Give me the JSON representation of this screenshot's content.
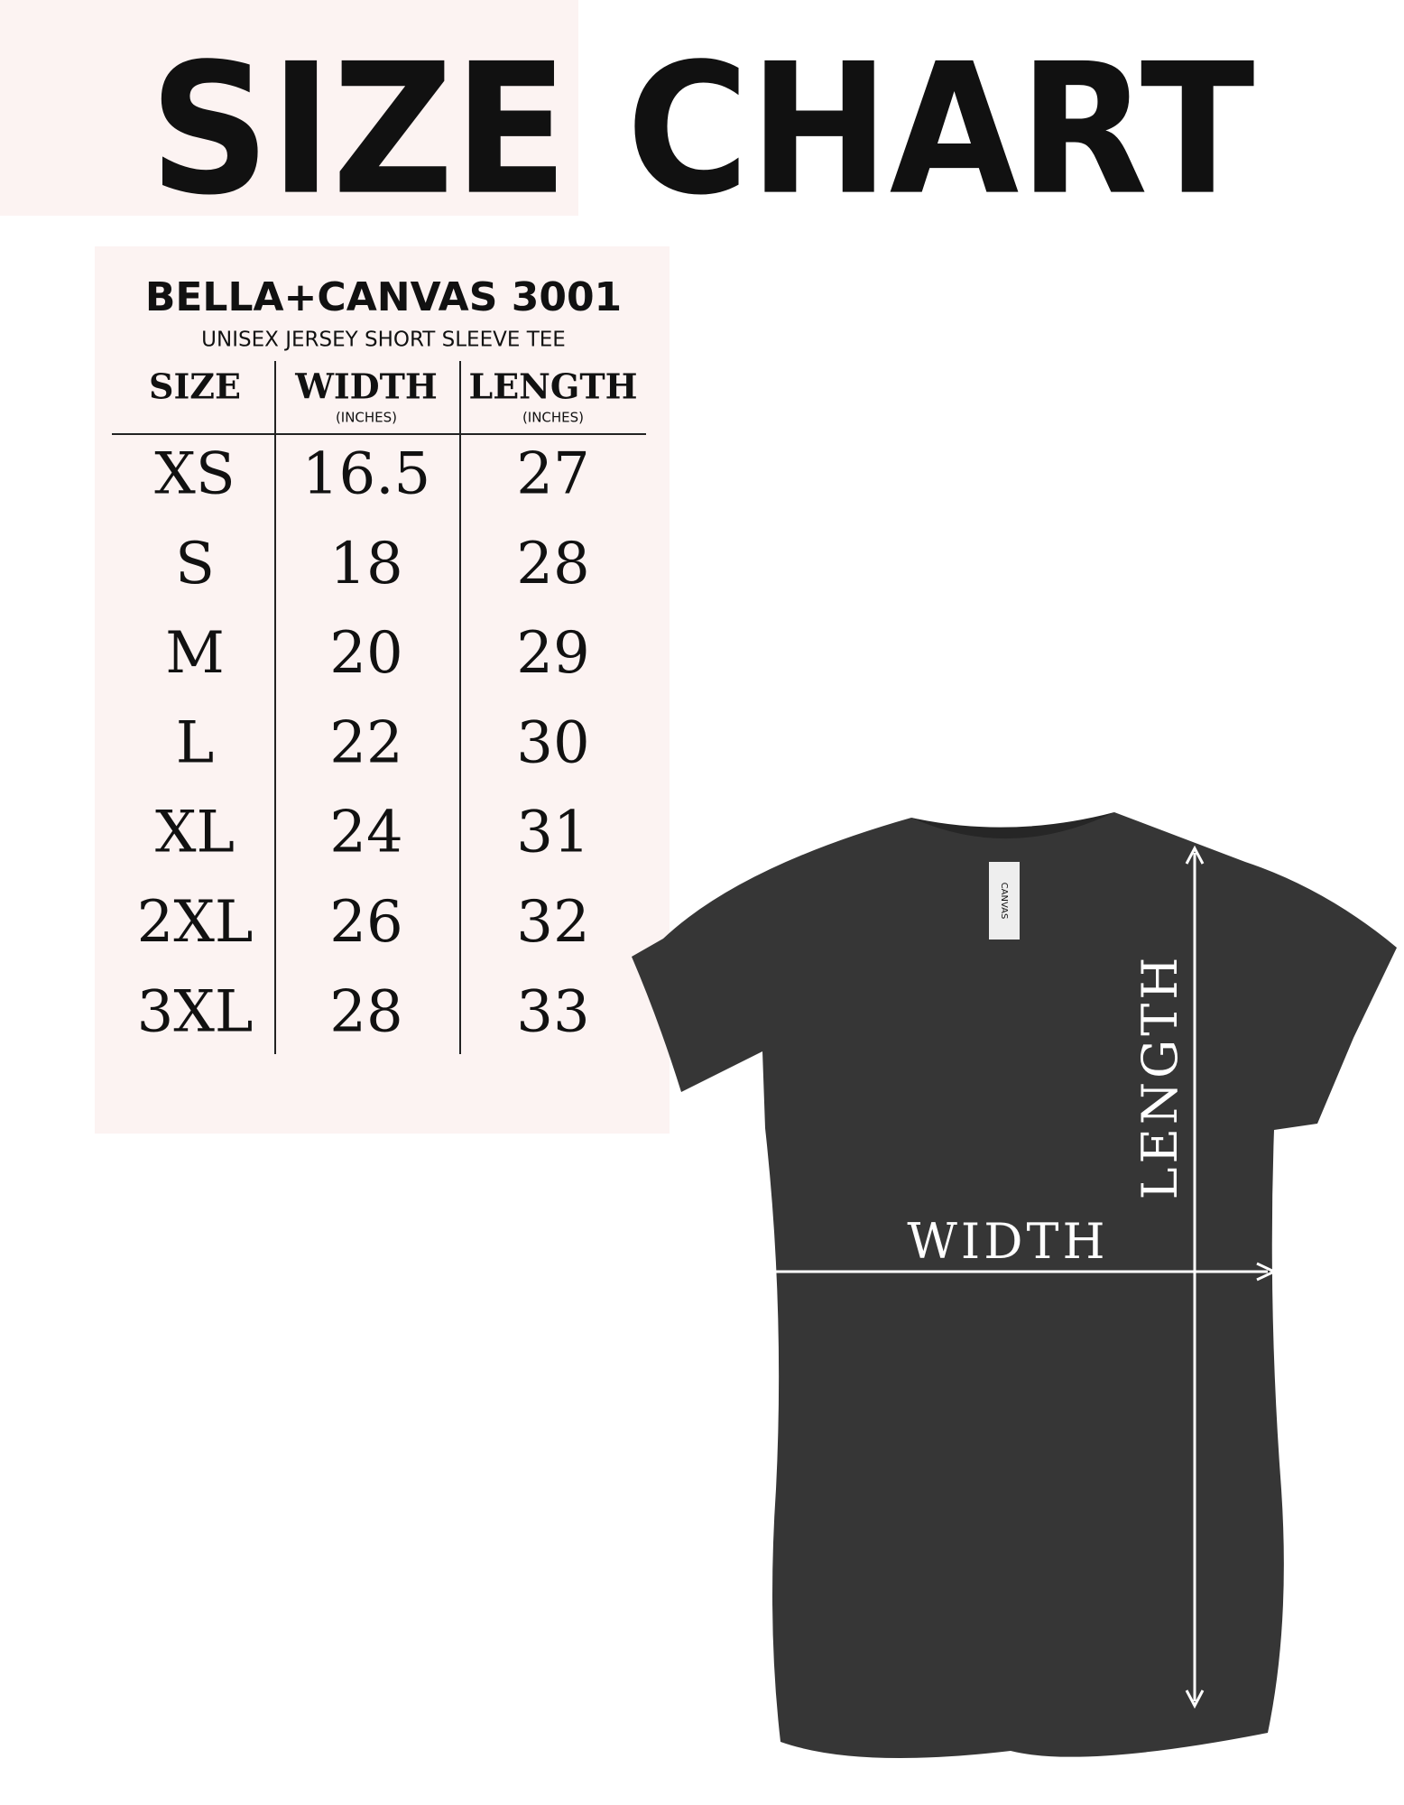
{
  "header": {
    "title": "SIZE CHART"
  },
  "table": {
    "brand": "BELLA+CANVAS 3001",
    "subtitle": "UNISEX JERSEY SHORT SLEEVE TEE",
    "columns": [
      {
        "label": "SIZE"
      },
      {
        "label": "WIDTH",
        "unit": "(INCHES)"
      },
      {
        "label": "LENGTH",
        "unit": "(INCHES)"
      }
    ],
    "rows": [
      [
        "XS",
        "16.5",
        "27"
      ],
      [
        "S",
        "18",
        "28"
      ],
      [
        "M",
        "20",
        "29"
      ],
      [
        "L",
        "22",
        "30"
      ],
      [
        "XL",
        "24",
        "31"
      ],
      [
        "2XL",
        "26",
        "32"
      ],
      [
        "3XL",
        "28",
        "33"
      ]
    ]
  },
  "shirt": {
    "tag": "CANVAS",
    "width_label": "WIDTH",
    "length_label": "LENGTH"
  }
}
